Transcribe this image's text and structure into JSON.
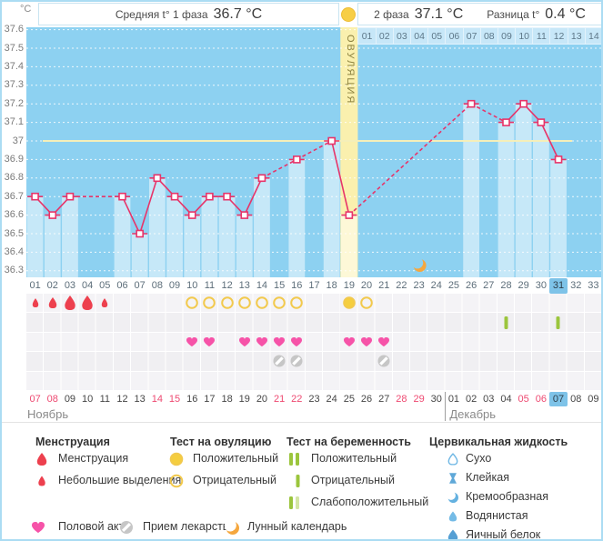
{
  "header": {
    "avg_phase1_label": "Средняя t° 1 фаза",
    "avg_phase1_value": "36.7 °C",
    "phase2_label": "2 фаза",
    "phase2_value": "37.1 °C",
    "diff_label": "Разница t°",
    "diff_value": "0.4 °C"
  },
  "y_axis": {
    "unit": "°C"
  },
  "ovulation": {
    "label": "ОВУЛЯЦИЯ",
    "day": 19
  },
  "dpo_days": [
    "01",
    "02",
    "03",
    "04",
    "05",
    "06",
    "07",
    "08",
    "09",
    "10",
    "11",
    "12",
    "13",
    "14"
  ],
  "cycle_days": [
    "01",
    "02",
    "03",
    "04",
    "05",
    "06",
    "07",
    "08",
    "09",
    "10",
    "11",
    "12",
    "13",
    "14",
    "15",
    "16",
    "17",
    "18",
    "19",
    "20",
    "21",
    "22",
    "23",
    "24",
    "25",
    "26",
    "27",
    "28",
    "29",
    "30",
    "31",
    "32",
    "33"
  ],
  "current_cycle_day": 31,
  "chart_data": {
    "type": "line",
    "units": "°C",
    "ylabel": "°C",
    "ylim": [
      36.3,
      37.6
    ],
    "yticks": [
      37.6,
      37.5,
      37.4,
      37.3,
      37.2,
      37.1,
      37.0,
      36.9,
      36.8,
      36.7,
      36.6,
      36.5,
      36.4,
      36.3
    ],
    "grid": true,
    "days": [
      1,
      2,
      3,
      4,
      5,
      6,
      7,
      8,
      9,
      10,
      11,
      12,
      13,
      14,
      15,
      16,
      17,
      18,
      19,
      20,
      21,
      22,
      23,
      24,
      25,
      26,
      27,
      28,
      29,
      30,
      31,
      32,
      33
    ],
    "temperatures": [
      36.7,
      36.6,
      36.7,
      null,
      null,
      36.7,
      36.5,
      36.8,
      36.7,
      36.6,
      36.7,
      36.7,
      36.6,
      36.8,
      null,
      36.9,
      null,
      37.0,
      36.6,
      null,
      null,
      null,
      null,
      null,
      null,
      37.2,
      null,
      37.1,
      37.2,
      37.1,
      36.9,
      null,
      null
    ],
    "coverline": 37.0,
    "ovulation_day": 19,
    "lunar_day": 23
  },
  "events": {
    "menstruation": [
      {
        "day": 1,
        "size": "small"
      },
      {
        "day": 2,
        "size": "medium"
      },
      {
        "day": 3,
        "size": "large"
      },
      {
        "day": 4,
        "size": "large"
      },
      {
        "day": 5,
        "size": "small"
      }
    ],
    "ovulation_tests": {
      "negative": [
        10,
        11,
        12,
        13,
        14,
        15,
        16,
        20
      ],
      "positive": [
        19
      ]
    },
    "pregnancy_tests": {
      "negative": [
        28,
        31
      ]
    },
    "intercourse": [
      10,
      11,
      13,
      14,
      15,
      16,
      19,
      20,
      21
    ],
    "medications": [
      15,
      16,
      21
    ],
    "lunar_day": 23
  },
  "calendar": {
    "dates": [
      "07",
      "08",
      "09",
      "10",
      "11",
      "12",
      "13",
      "14",
      "15",
      "16",
      "17",
      "18",
      "19",
      "20",
      "21",
      "22",
      "23",
      "24",
      "25",
      "26",
      "27",
      "28",
      "29",
      "30",
      "01",
      "02",
      "03",
      "04",
      "05",
      "06",
      "07",
      "08",
      "09"
    ],
    "red_days": [
      1,
      2,
      8,
      9,
      15,
      16,
      22,
      23,
      29,
      30
    ],
    "highlight_day": 31,
    "months": [
      {
        "name": "Ноябрь",
        "start_day": 1
      },
      {
        "name": "Декабрь",
        "start_day": 25
      }
    ]
  },
  "legend": {
    "sections": [
      {
        "title": "Менструация",
        "items": [
          {
            "icon": "menses-large",
            "label": "Менструация"
          },
          {
            "icon": "menses-small",
            "label": "Небольшие выделения"
          }
        ]
      },
      {
        "title": "Тест на овуляцию",
        "items": [
          {
            "icon": "ovu-pos",
            "label": "Положительный"
          },
          {
            "icon": "ovu-neg",
            "label": "Отрицательный"
          }
        ]
      },
      {
        "title": "Тест на беременность",
        "items": [
          {
            "icon": "preg-pos",
            "label": "Положительный"
          },
          {
            "icon": "preg-neg",
            "label": "Отрицательный"
          },
          {
            "icon": "preg-weak",
            "label": "Слабоположительный"
          }
        ]
      },
      {
        "title": "Цервикальная жидкость",
        "items": [
          {
            "icon": "cf-dry",
            "label": "Сухо"
          },
          {
            "icon": "cf-sticky",
            "label": "Клейкая"
          },
          {
            "icon": "cf-creamy",
            "label": "Кремообразная"
          },
          {
            "icon": "cf-watery",
            "label": "Водянистая"
          },
          {
            "icon": "cf-egg",
            "label": "Яичный белок"
          }
        ]
      }
    ],
    "footer": [
      {
        "icon": "heart",
        "label": "Половой акт"
      },
      {
        "icon": "pill",
        "label": "Прием лекарств"
      },
      {
        "icon": "moon",
        "label": "Лунный календарь"
      }
    ]
  },
  "colors": {
    "plot_bg": "#8dd1f1",
    "bar": "rgba(255,255,255,0.5)",
    "ovulation_band": "#faf0ae",
    "line": "#e73469",
    "coverline": "#f5efb9",
    "grid": "#ffffff",
    "menstruation": "#ed404e",
    "ovulation_test_stroke": "#f2c94c",
    "ovulation_test_fill": "#f5ce3e",
    "pregnancy_test": "#9bc53d",
    "pregnancy_test_weak": "#d4e6a5",
    "intercourse": "#f653a8",
    "medication": "#c6c6c6",
    "moon": "#f5a73e",
    "cervical": "#64b1e0",
    "highlight": "#7ec3e8"
  }
}
